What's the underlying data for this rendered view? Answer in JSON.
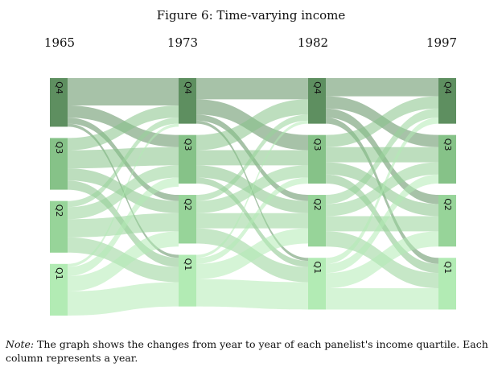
{
  "figure": {
    "title": "Figure 6: Time-varying income",
    "years": [
      "1965",
      "1973",
      "1982",
      "1997"
    ],
    "quartiles": [
      "Q1",
      "Q2",
      "Q3",
      "Q4"
    ],
    "note_label": "Note:",
    "note_text": " The graph shows the changes from year to year of each panelist's income quartile. Each column represents a year."
  },
  "colors": {
    "q1": "#b2ebb4",
    "q2": "#97d499",
    "q3": "#86c288",
    "q4": "#5e8f60",
    "flow_opacity": 0.55
  },
  "chart_data": {
    "type": "sankey",
    "columns": [
      "1965",
      "1973",
      "1982",
      "1997"
    ],
    "nodes": [
      "Q1",
      "Q2",
      "Q3",
      "Q4"
    ],
    "transitions": [
      [
        [
          8,
          5,
          3,
          1
        ],
        [
          5,
          6,
          4,
          2
        ],
        [
          3,
          4,
          6,
          4
        ],
        [
          1,
          2,
          4,
          9
        ]
      ],
      [
        [
          9,
          5,
          2,
          1
        ],
        [
          5,
          5,
          4,
          2
        ],
        [
          2,
          4,
          5,
          5
        ],
        [
          1,
          2,
          5,
          7
        ]
      ],
      [
        [
          7,
          5,
          3,
          2
        ],
        [
          5,
          5,
          4,
          3
        ],
        [
          3,
          4,
          5,
          4
        ],
        [
          2,
          3,
          4,
          6
        ]
      ]
    ]
  }
}
